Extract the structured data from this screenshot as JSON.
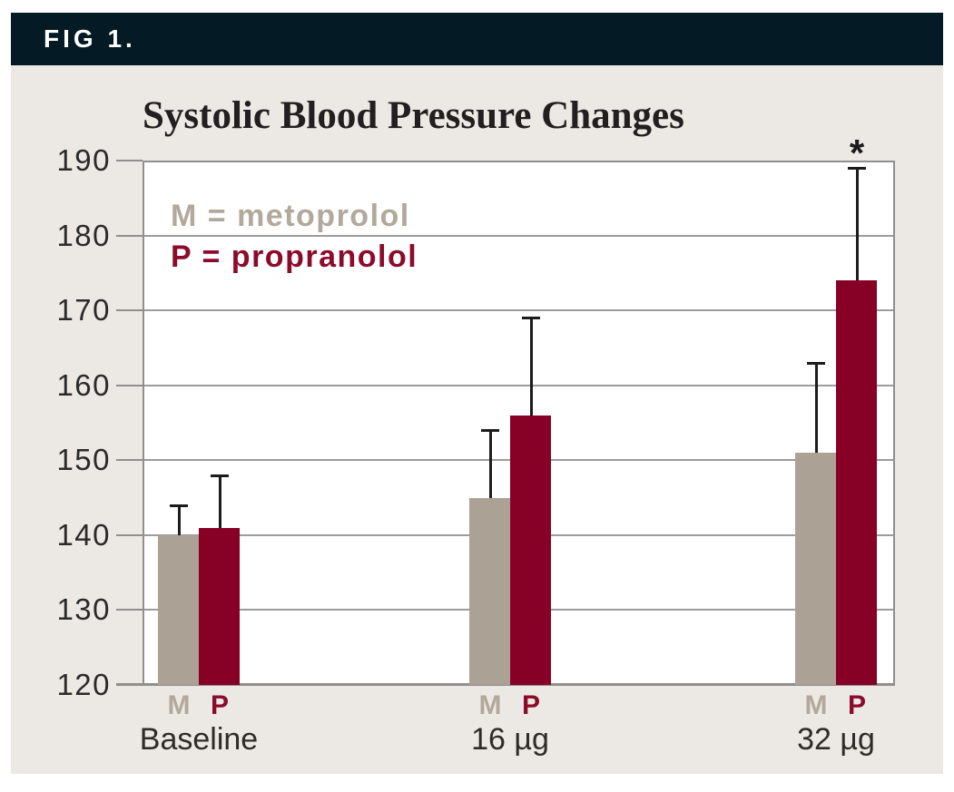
{
  "figure_label": "FIG 1.",
  "colors": {
    "header_bg": "#041a24",
    "panel_bg": "#ece9e4",
    "plot_bg": "#ffffff",
    "grid_line": "#9c9c9c",
    "axis_line": "#8f8f8f",
    "metoprolol_bar": "#aba295",
    "propranolol_bar": "#870127",
    "metoprolol_text": "#b2a89b",
    "propranolol_text": "#8c0b2b",
    "error_bar": "#1c1c1c"
  },
  "legend": {
    "items": [
      {
        "label": "M = metoprolol",
        "series": "M",
        "drug": "metoprolol"
      },
      {
        "label": "P = propranolol",
        "series": "P",
        "drug": "propranolol"
      }
    ]
  },
  "chart_data": {
    "type": "bar",
    "title": "Systolic Blood Pressure Changes",
    "categories": [
      "Baseline",
      "16 µg",
      "32 µg"
    ],
    "series": [
      {
        "name": "M",
        "drug": "metoprolol",
        "values": [
          140,
          145,
          151
        ],
        "error_plus": [
          4,
          9,
          12
        ]
      },
      {
        "name": "P",
        "drug": "propranolol",
        "values": [
          141,
          156,
          174
        ],
        "error_plus": [
          7,
          13,
          15
        ]
      }
    ],
    "ylim": [
      120,
      190
    ],
    "yticks": [
      120,
      130,
      140,
      150,
      160,
      170,
      180,
      190
    ],
    "xlabel": "",
    "ylabel": "",
    "grid": "horizontal",
    "legend_position": "inside top-left",
    "annotations": [
      {
        "symbol": "*",
        "category": "32 µg",
        "series": "P",
        "position": "above error bar"
      }
    ]
  }
}
